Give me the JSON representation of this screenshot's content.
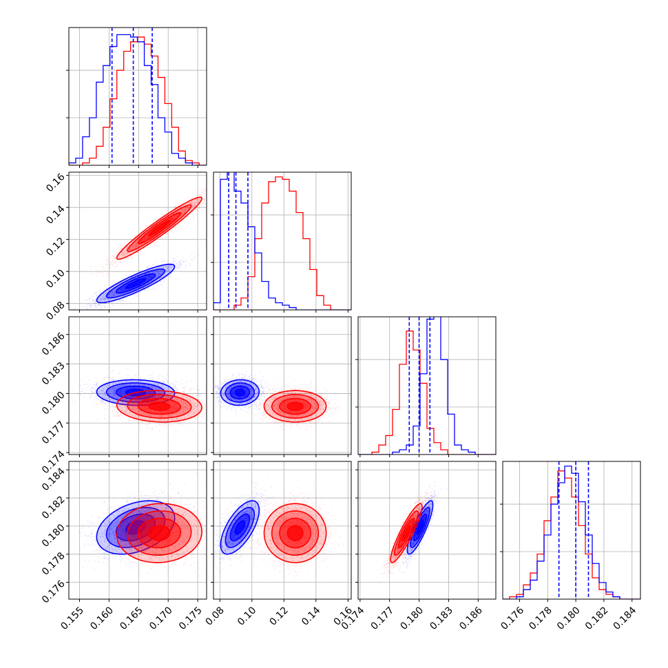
{
  "chart_data": {
    "type": "scatter",
    "kind": "corner-plot",
    "series_colors": {
      "blue": "#0000ff",
      "red": "#ff0000"
    },
    "grid": true,
    "legend": "none",
    "variables": [
      {
        "ticks": [
          "0.155",
          "0.160",
          "0.165",
          "0.170",
          "0.175"
        ],
        "range": [
          0.1532,
          0.1765
        ]
      },
      {
        "ticks": [
          "0.08",
          "0.10",
          "0.12",
          "0.14",
          "0.16"
        ],
        "range": [
          0.076,
          0.162
        ]
      },
      {
        "ticks": [
          "0.174",
          "0.177",
          "0.180",
          "0.183",
          "0.186"
        ],
        "range": [
          0.1738,
          0.1878
        ]
      },
      {
        "ticks": [
          "0.176",
          "0.178",
          "0.180",
          "0.182",
          "0.184"
        ],
        "range": [
          0.1748,
          0.1846
        ]
      }
    ],
    "series": [
      {
        "color": "blue",
        "quantiles": [
          [
            0.1605,
            0.1641,
            0.1673
          ],
          [
            0.0855,
            0.09,
            0.0975
          ],
          [
            0.179,
            0.18,
            0.1811
          ],
          [
            0.1788,
            0.18,
            0.1809
          ]
        ],
        "histograms": [
          {
            "edges_start": 0.1532,
            "bin_width": 0.00116,
            "counts": [
              1,
              3,
              12,
              20,
              35,
              42,
              50,
              55,
              55,
              54,
              52,
              42,
              34,
              20,
              14,
              5,
              3,
              1,
              0,
              0
            ]
          },
          {
            "edges_start": 0.076,
            "bin_width": 0.0043,
            "counts": [
              3,
              55,
              64,
              50,
              45,
              35,
              24,
              12,
              5,
              3,
              2,
              1,
              0,
              0,
              0,
              0,
              0,
              0,
              0,
              0
            ]
          },
          {
            "edges_start": 0.1738,
            "bin_width": 0.0007,
            "counts": [
              0,
              0,
              0,
              0,
              0,
              1,
              2,
              4,
              12,
              34,
              57,
              62,
              40,
              17,
              4,
              2,
              1,
              0,
              0,
              0
            ]
          },
          {
            "edges_start": 0.1748,
            "bin_width": 0.00049,
            "counts": [
              0,
              0,
              1,
              4,
              8,
              16,
              27,
              40,
              49,
              56,
              53,
              41,
              27,
              15,
              7,
              3,
              1,
              0,
              0,
              0
            ]
          }
        ],
        "gaussian": {
          "mean": [
            0.1645,
            0.0925,
            0.1801,
            0.1799
          ],
          "std": [
            0.0033,
            0.006,
            0.00065,
            0.00095
          ],
          "corr": {
            "0-1": 0.88,
            "0-2": -0.05,
            "0-3": 0.35,
            "1-2": 0.05,
            "1-3": 0.65,
            "2-3": 0.85
          }
        }
      },
      {
        "color": "red",
        "quantiles": [
          null,
          null,
          null,
          null
        ],
        "histograms": [
          {
            "edges_start": 0.1532,
            "bin_width": 0.00116,
            "counts": [
              0,
              0,
              1,
              3,
              8,
              16,
              28,
              40,
              48,
              52,
              54,
              51,
              46,
              37,
              26,
              16,
              6,
              2,
              1,
              0
            ]
          },
          {
            "edges_start": 0.076,
            "bin_width": 0.0043,
            "counts": [
              0,
              0,
              0,
              2,
              5,
              14,
              30,
              45,
              54,
              56,
              55,
              50,
              41,
              30,
              17,
              6,
              2,
              0,
              0,
              0
            ]
          },
          {
            "edges_start": 0.1738,
            "bin_width": 0.0007,
            "counts": [
              0,
              0,
              1,
              4,
              8,
              19,
              38,
              52,
              44,
              30,
              11,
              5,
              2,
              0,
              0,
              0,
              0,
              0,
              0,
              0
            ]
          },
          {
            "edges_start": 0.1748,
            "bin_width": 0.00049,
            "counts": [
              0,
              1,
              2,
              6,
              11,
              19,
              33,
              43,
              54,
              51,
              43,
              31,
              19,
              9,
              4,
              2,
              1,
              0,
              0,
              0
            ]
          }
        ],
        "gaussian": {
          "mean": [
            0.1685,
            0.127,
            0.1787,
            0.1795
          ],
          "std": [
            0.0036,
            0.0097,
            0.0008,
            0.00105
          ],
          "corr": {
            "0-1": 0.96,
            "0-2": -0.08,
            "0-3": 0.05,
            "1-2": 0.0,
            "1-3": 0.0,
            "2-3": 0.9
          }
        }
      }
    ]
  }
}
